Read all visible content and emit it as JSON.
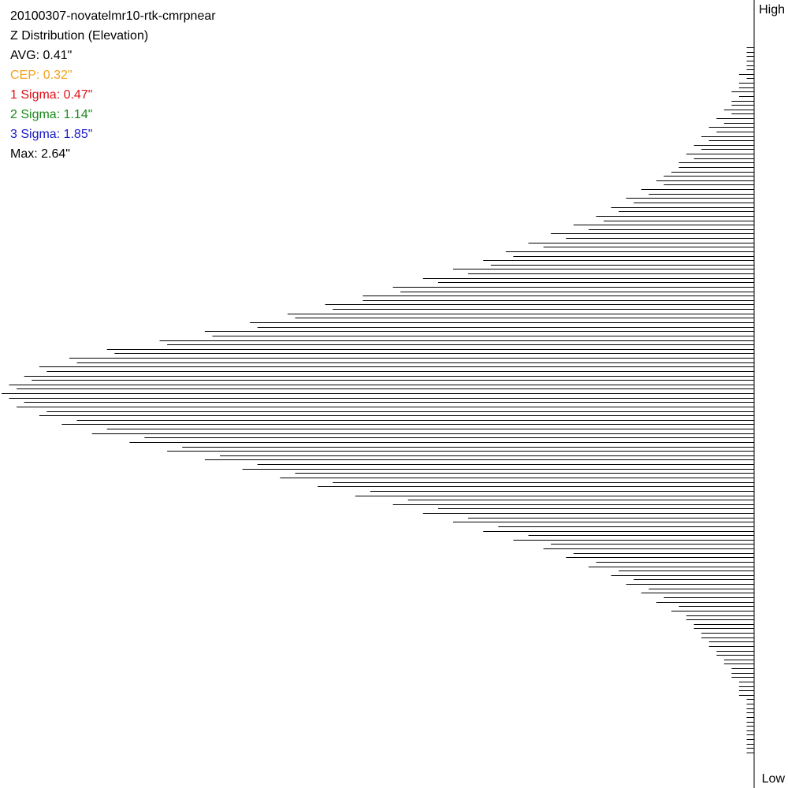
{
  "chart_data": {
    "type": "bar",
    "orientation": "horizontal",
    "title": "20100307-novatelmr10-rtk-cmrpnear",
    "subtitle": "Z Distribution (Elevation)",
    "axis_top_label": "High",
    "axis_bottom_label": "Low",
    "stats": [
      {
        "key": "avg",
        "text": "AVG: 0.41\"",
        "color": "#000000"
      },
      {
        "key": "cep",
        "text": "CEP: 0.32\"",
        "color": "#f4a21e"
      },
      {
        "key": "sigma1",
        "text": "1 Sigma: 0.47\"",
        "color": "#e0101a"
      },
      {
        "key": "sigma2",
        "text": "2 Sigma: 1.14\"",
        "color": "#1a8a1a"
      },
      {
        "key": "sigma3",
        "text": "3 Sigma: 1.85\"",
        "color": "#1a1ac8"
      },
      {
        "key": "max",
        "text": "Max: 2.64\"",
        "color": "#000000"
      }
    ],
    "bar_color": "#000000",
    "values": [
      1,
      1,
      1,
      1,
      1,
      1,
      2,
      1,
      2,
      2,
      3,
      2,
      3,
      3,
      4,
      3,
      5,
      4,
      6,
      5,
      7,
      6,
      8,
      7,
      9,
      8,
      10,
      10,
      11,
      12,
      13,
      12,
      15,
      14,
      17,
      16,
      19,
      18,
      21,
      20,
      24,
      22,
      27,
      25,
      30,
      28,
      33,
      32,
      36,
      35,
      40,
      38,
      44,
      42,
      48,
      47,
      52,
      52,
      57,
      56,
      62,
      61,
      67,
      66,
      73,
      72,
      79,
      78,
      86,
      85,
      91,
      90,
      95,
      94,
      97,
      96,
      99,
      98,
      100,
      99,
      97,
      98,
      94,
      95,
      90,
      92,
      86,
      88,
      81,
      83,
      76,
      78,
      71,
      73,
      66,
      68,
      61,
      63,
      56,
      58,
      51,
      53,
      46,
      48,
      42,
      44,
      38,
      40,
      34,
      36,
      30,
      32,
      27,
      28,
      24,
      25,
      21,
      22,
      18,
      19,
      16,
      17,
      14,
      15,
      12,
      13,
      10,
      11,
      9,
      9,
      8,
      8,
      7,
      7,
      6,
      6,
      5,
      5,
      4,
      4,
      3,
      3,
      3,
      2,
      2,
      2,
      2,
      1,
      1,
      1,
      1,
      1,
      1,
      1,
      1,
      1,
      1,
      1,
      1,
      1
    ]
  }
}
